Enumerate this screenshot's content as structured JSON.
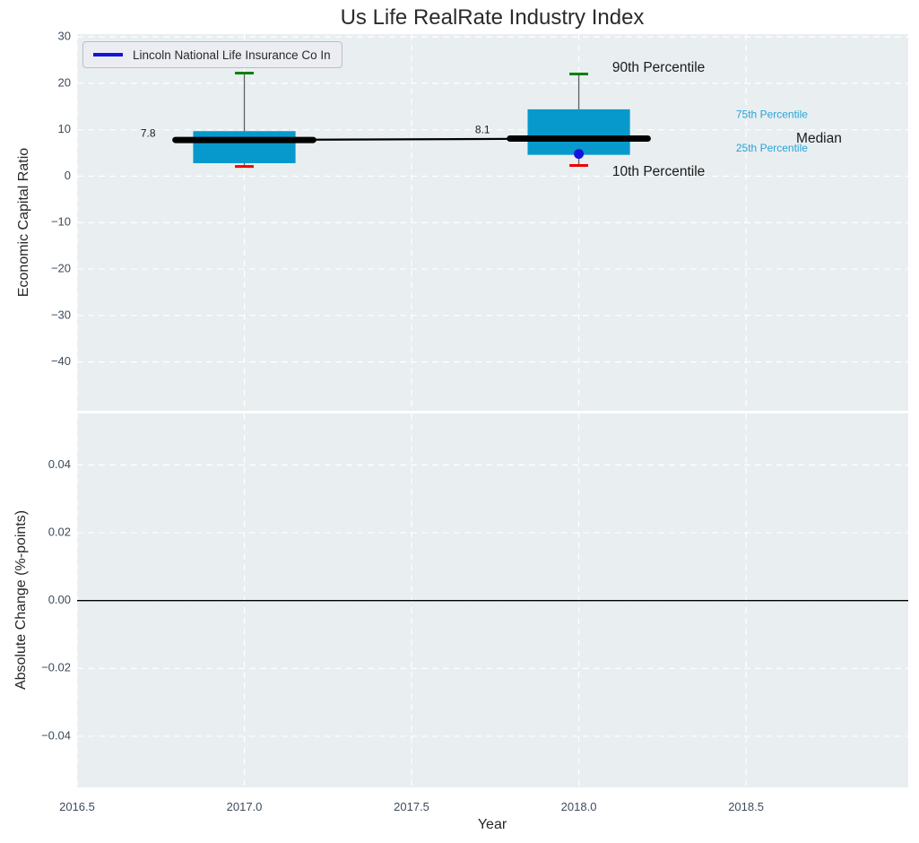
{
  "title": "Us Life RealRate Industry Index",
  "legend": {
    "label": "Lincoln National Life Insurance Co In",
    "line_color": "#1414dd"
  },
  "colors": {
    "box_fill": "#0899cc",
    "whisker": "#606060",
    "cap_top": "#008000",
    "cap_bottom": "#ee0000",
    "median_line": "#000000",
    "company_point": "#1414dd",
    "plot_bg": "#e9eef0",
    "grid": "#ffffff",
    "tick_text": "#3e4b5b",
    "annotation_black": "#1a1a1a",
    "annotation_cyan": "#29a4d9",
    "zero_line": "#000000"
  },
  "chart_data": [
    {
      "type": "boxplot",
      "title": "Us Life RealRate Industry Index",
      "xlabel": "Year",
      "ylabel": "Economic Capital Ratio",
      "legend_position": "upper left",
      "grid": "on, white dashed",
      "xlim": [
        2016.5,
        2018.985
      ],
      "ylim": [
        -50.5,
        30.6
      ],
      "xticks": [
        "2016.5",
        "2017.0",
        "2017.5",
        "2018.0",
        "2018.5"
      ],
      "xtick_values": [
        2016.5,
        2017.0,
        2017.5,
        2018.0,
        2018.5
      ],
      "yticks": [
        "30",
        "20",
        "10",
        "0",
        "−10",
        "−20",
        "−30",
        "−40"
      ],
      "ytick_values": [
        30,
        20,
        10,
        0,
        -10,
        -20,
        -30,
        -40
      ],
      "boxes": [
        {
          "x": 2017,
          "p10": 2.1,
          "p25": 2.8,
          "median": 7.8,
          "p75": 9.7,
          "p90": 22.2
        },
        {
          "x": 2018,
          "p10": 2.3,
          "p25": 4.6,
          "median": 8.1,
          "p75": 14.4,
          "p90": 22.0
        }
      ],
      "median_trend": [
        {
          "x": 2017,
          "y": 7.8
        },
        {
          "x": 2018,
          "y": 8.1
        }
      ],
      "company_series": {
        "name": "Lincoln National Life Insurance Co In",
        "points": [
          {
            "x": 2018,
            "y": 4.8
          }
        ]
      },
      "annotations": [
        {
          "text": "7.8",
          "x": 2016.69,
          "y": 9.1,
          "size": "small",
          "color": "black"
        },
        {
          "text": "8.1",
          "x": 2017.69,
          "y": 9.9,
          "size": "small",
          "color": "black"
        },
        {
          "text": "90th Percentile",
          "x": 2018.1,
          "y": 23.3,
          "size": "large",
          "color": "black"
        },
        {
          "text": "75th Percentile",
          "x": 2018.47,
          "y": 13.2,
          "size": "small",
          "color": "cyan"
        },
        {
          "text": "Median",
          "x": 2018.65,
          "y": 8.0,
          "size": "large",
          "color": "black"
        },
        {
          "text": "25th Percentile",
          "x": 2018.47,
          "y": 5.9,
          "size": "small",
          "color": "cyan"
        },
        {
          "text": "10th Percentile",
          "x": 2018.1,
          "y": 0.9,
          "size": "large",
          "color": "black"
        }
      ]
    },
    {
      "type": "line",
      "xlabel": "Year",
      "ylabel": "Absolute Change (%-points)",
      "grid": "on, white dashed",
      "xlim": [
        2016.5,
        2018.985
      ],
      "ylim": [
        -0.0551,
        0.0552
      ],
      "yticks": [
        "0.04",
        "0.02",
        "0.00",
        "−0.02",
        "−0.04"
      ],
      "ytick_values": [
        0.04,
        0.02,
        0.0,
        -0.02,
        -0.04
      ],
      "series": [],
      "zero_line": 0.0
    }
  ]
}
